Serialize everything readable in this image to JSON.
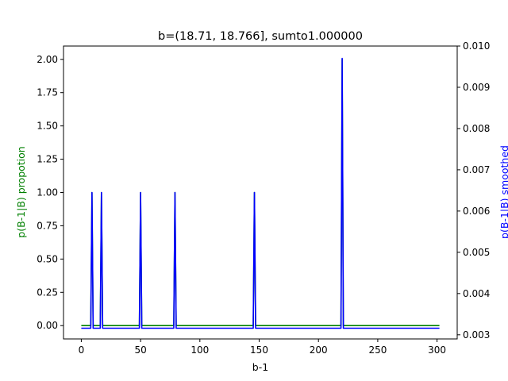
{
  "chart_data": {
    "type": "line",
    "title": "b=(18.71, 18.766], sumto1.000000",
    "xlabel": "b-1",
    "ylabel_left": "p(B-1|B) propotion",
    "ylabel_right": "p(B-1|B) smoothed",
    "xlim": [
      -15,
      317
    ],
    "ylim_left": [
      -0.1,
      2.1
    ],
    "ylim_right": [
      0.0029,
      0.01
    ],
    "x_ticks": [
      0,
      50,
      100,
      150,
      200,
      250,
      300
    ],
    "y_ticks_left": [
      0.0,
      0.25,
      0.5,
      0.75,
      1.0,
      1.25,
      1.5,
      1.75,
      2.0
    ],
    "y_ticks_right": [
      0.003,
      0.004,
      0.005,
      0.006,
      0.007,
      0.008,
      0.009,
      0.01
    ],
    "x_tick_labels": [
      "0",
      "50",
      "100",
      "150",
      "200",
      "250",
      "300"
    ],
    "y_tick_labels_left": [
      "0.00",
      "0.25",
      "0.50",
      "0.75",
      "1.00",
      "1.25",
      "1.50",
      "1.75",
      "2.00"
    ],
    "y_tick_labels_right": [
      "0.003",
      "0.004",
      "0.005",
      "0.006",
      "0.007",
      "0.008",
      "0.009",
      "0.010"
    ],
    "grid": false,
    "series": [
      {
        "axis": "left",
        "color": "#008000",
        "x": [
          0,
          8,
          9,
          10,
          16,
          17,
          18,
          49,
          50,
          51,
          78,
          79,
          80,
          145,
          146,
          147,
          219,
          220,
          221,
          302
        ],
        "y": [
          0,
          0,
          1,
          0,
          0,
          1,
          0,
          0,
          1,
          0,
          0,
          1,
          0,
          0,
          1,
          0,
          0,
          2,
          0,
          0
        ]
      },
      {
        "axis": "right",
        "color": "#0000ff",
        "x": [
          0,
          8,
          9,
          10,
          16,
          17,
          18,
          49,
          50,
          51,
          78,
          79,
          80,
          145,
          146,
          147,
          219,
          220,
          221,
          302
        ],
        "y": [
          0.00316,
          0.00316,
          0.00645,
          0.00316,
          0.00316,
          0.00645,
          0.00316,
          0.00316,
          0.00645,
          0.00316,
          0.00316,
          0.00645,
          0.00316,
          0.00316,
          0.00645,
          0.00316,
          0.00316,
          0.0097,
          0.00316,
          0.00316
        ]
      }
    ]
  }
}
